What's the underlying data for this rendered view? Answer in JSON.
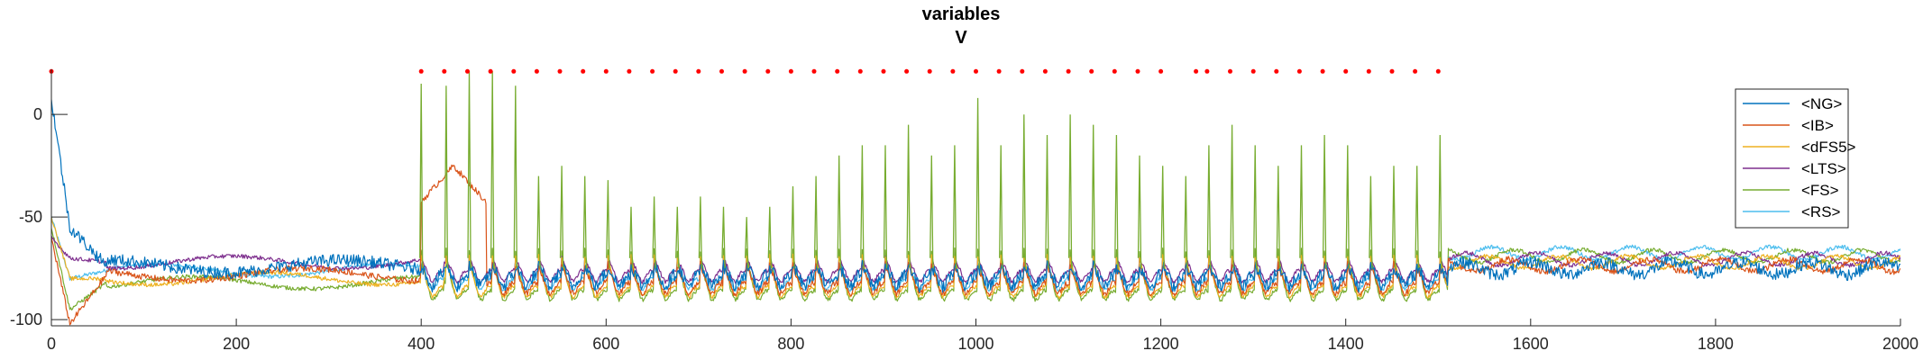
{
  "chart_data": {
    "type": "line",
    "title": "variables",
    "subtitle": "V",
    "xlim": [
      0,
      2000
    ],
    "ylim": [
      -103,
      22
    ],
    "x_ticks": [
      0,
      200,
      400,
      600,
      800,
      1000,
      1200,
      1400,
      1600,
      1800,
      2000
    ],
    "y_ticks": [
      -100,
      -50,
      0
    ],
    "grid": false,
    "legend_position": "top-right",
    "series": [
      {
        "name": "<NG>",
        "color": "#0072BD",
        "baseline": -74,
        "transient": [
          8,
          -55
        ],
        "pulse": 8,
        "noise": 6,
        "burst_x": [
          390,
          480
        ]
      },
      {
        "name": "<IB>",
        "color": "#D95319",
        "baseline": -78,
        "transient": [
          -60,
          -102
        ],
        "pulse": 18,
        "noise": 3,
        "burst_x": [
          400,
          470
        ],
        "burst_peak": -25
      },
      {
        "name": "<dFS5>",
        "color": "#EDB120",
        "baseline": -80,
        "transient": [
          -50,
          -80
        ],
        "pulse": 30,
        "noise": 2
      },
      {
        "name": "<LTS>",
        "color": "#7E2F8E",
        "baseline": -72,
        "transient": [
          -60,
          -70
        ],
        "pulse": 12,
        "noise": 2,
        "spikes_pre": [
          100,
          120
        ]
      },
      {
        "name": "<FS>",
        "color": "#77AC30",
        "baseline": -82,
        "transient": [
          -55,
          -95
        ],
        "pulse": 40,
        "noise": 2
      },
      {
        "name": "<RS>",
        "color": "#4DBEEE",
        "baseline": -76,
        "transient": [
          -50,
          -80
        ],
        "pulse": 15,
        "noise": 2
      }
    ],
    "spike_times": [
      400,
      427,
      452,
      477,
      502,
      527,
      552,
      577,
      602,
      627,
      652,
      677,
      702,
      727,
      752,
      777,
      802,
      827,
      852,
      877,
      902,
      927,
      952,
      977,
      1002,
      1027,
      1052,
      1077,
      1102,
      1127,
      1152,
      1177,
      1202,
      1227,
      1252,
      1277,
      1302,
      1327,
      1352,
      1377,
      1402,
      1427,
      1452,
      1477,
      1502
    ],
    "fs_spike_peaks": [
      15,
      14,
      21,
      21,
      14,
      -30,
      -25,
      -30,
      -32,
      -45,
      -40,
      -45,
      -40,
      -45,
      -50,
      -45,
      -35,
      -30,
      -20,
      -15,
      -15,
      -5,
      -20,
      -15,
      8,
      -15,
      0,
      -10,
      0,
      -5,
      -10,
      -20,
      -25,
      -30,
      -15,
      -5,
      -15,
      -25,
      -15,
      -10,
      -15,
      -30,
      -25,
      -25,
      -10
    ],
    "raster_times": [
      0,
      400,
      425,
      450,
      475,
      500,
      525,
      550,
      575,
      600,
      625,
      650,
      675,
      700,
      725,
      750,
      775,
      800,
      825,
      850,
      875,
      900,
      925,
      950,
      975,
      1000,
      1025,
      1050,
      1075,
      1100,
      1125,
      1150,
      1175,
      1200,
      1238,
      1250,
      1275,
      1300,
      1325,
      1350,
      1375,
      1400,
      1425,
      1450,
      1475,
      1500
    ],
    "raster_color": "#FF0000",
    "raster_y": 21,
    "late_activity": {
      "x": [
        1510,
        2000
      ],
      "baseline": -72,
      "noise": 5
    }
  }
}
